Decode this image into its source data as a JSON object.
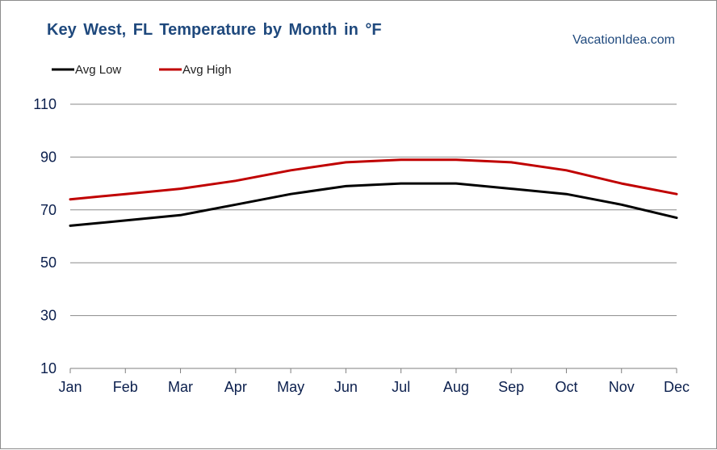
{
  "chart_data": {
    "type": "line",
    "title": "Key West, FL Temperature by Month in °F",
    "source": "VacationIdea.com",
    "categories": [
      "Jan",
      "Feb",
      "Mar",
      "Apr",
      "May",
      "Jun",
      "Jul",
      "Aug",
      "Sep",
      "Oct",
      "Nov",
      "Dec"
    ],
    "series": [
      {
        "name": "Avg Low",
        "color": "#000000",
        "values": [
          64,
          66,
          68,
          72,
          76,
          79,
          80,
          80,
          78,
          76,
          72,
          67
        ]
      },
      {
        "name": "Avg High",
        "color": "#c00000",
        "values": [
          74,
          76,
          78,
          81,
          85,
          88,
          89,
          89,
          88,
          85,
          80,
          76
        ]
      }
    ],
    "ylim": [
      10,
      110
    ],
    "yticks": [
      10,
      30,
      50,
      70,
      90,
      110
    ],
    "grid": true,
    "legend": "top-left"
  }
}
